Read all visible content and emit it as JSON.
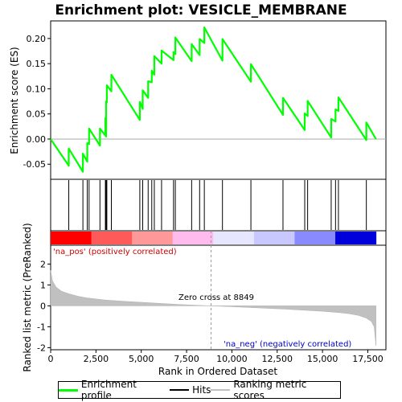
{
  "chart_data": {
    "type": "line",
    "title": "Enrichment plot: VESICLE_MEMBRANE",
    "xlabel": "Rank in Ordered Dataset",
    "ylabel_top": "Enrichment score (ES)",
    "ylabel_bottom": "Ranked list metric (PreRanked)",
    "xlim": [
      0,
      18500
    ],
    "top_ylim": [
      -0.08,
      0.235
    ],
    "bottom_ylim": [
      -2.1,
      2.9
    ],
    "x_ticks": [
      0,
      2500,
      5000,
      7500,
      10000,
      12500,
      15000,
      17500
    ],
    "x_tick_labels": [
      "0",
      "2,500",
      "5,000",
      "7,500",
      "10,000",
      "12,500",
      "15,000",
      "17,500"
    ],
    "top_y_ticks": [
      -0.05,
      0.0,
      0.05,
      0.1,
      0.15,
      0.2
    ],
    "top_y_tick_labels": [
      "-0.05",
      "0.00",
      "0.05",
      "0.10",
      "0.15",
      "0.20"
    ],
    "bottom_y_ticks": [
      -2,
      -1,
      0,
      1,
      2
    ],
    "bottom_y_tick_labels": [
      "-2",
      "-1",
      "0",
      "1",
      "2"
    ],
    "series": [
      {
        "name": "Enrichment profile",
        "color": "#00ff00",
        "hits": [
          1000,
          1780,
          2020,
          2120,
          2720,
          3020,
          3060,
          3100,
          3350,
          4920,
          5080,
          5380,
          5580,
          5720,
          6120,
          6780,
          6880,
          7780,
          8220,
          8480,
          9480,
          11050,
          12820,
          14020,
          14180,
          15480,
          15720,
          15880,
          17420
        ],
        "es_peaks": [
          0.0,
          -0.019,
          -0.029,
          -0.008,
          0.021,
          0.021,
          0.042,
          0.075,
          0.107,
          0.128,
          0.074,
          0.097,
          0.115,
          0.136,
          0.165,
          0.176,
          0.173,
          0.202,
          0.189,
          0.199,
          0.222,
          0.199,
          0.149,
          0.082,
          0.051,
          0.076,
          0.04,
          0.059,
          0.083,
          0.033,
          0.0
        ],
        "es_x": [
          0,
          1000,
          1780,
          2020,
          2120,
          2720,
          3020,
          3060,
          3100,
          3350,
          4920,
          5080,
          5380,
          5580,
          5720,
          6120,
          6780,
          6880,
          7780,
          8220,
          8480,
          9480,
          11050,
          12820,
          14020,
          14180,
          15480,
          15720,
          15880,
          17420,
          17950
        ],
        "es_valleys": [
          null,
          -0.053,
          -0.065,
          -0.045,
          -0.01,
          -0.013,
          0.007,
          0.005,
          0.073,
          0.095,
          0.038,
          0.06,
          0.082,
          0.113,
          0.128,
          0.15,
          0.157,
          0.169,
          0.155,
          0.167,
          0.191,
          0.156,
          0.114,
          0.048,
          0.018,
          0.046,
          0.003,
          0.035,
          0.056,
          -0.002,
          0.0
        ]
      },
      {
        "name": "Hits",
        "color": "#000000"
      },
      {
        "name": "Ranking metric scores",
        "color": "#c0c0c0",
        "profile_x": [
          0,
          100,
          300,
          600,
          1000,
          1500,
          2000,
          3000,
          4000,
          5000,
          6000,
          7000,
          8000,
          8849,
          10000,
          11000,
          12000,
          13000,
          14000,
          15000,
          16000,
          16500,
          17000,
          17400,
          17700,
          17850,
          17950
        ],
        "profile_y": [
          1.7,
          1.2,
          0.9,
          0.7,
          0.58,
          0.46,
          0.38,
          0.28,
          0.22,
          0.17,
          0.12,
          0.07,
          0.03,
          0.0,
          -0.04,
          -0.08,
          -0.12,
          -0.16,
          -0.21,
          -0.26,
          -0.33,
          -0.38,
          -0.46,
          -0.58,
          -0.75,
          -1.0,
          -1.9
        ]
      }
    ],
    "annotations": {
      "pos_label": "'na_pos' (positively correlated)",
      "neg_label": "'na_neg' (negatively correlated)",
      "zero_cross": "Zero cross at 8849",
      "zero_cross_x": 8849
    },
    "heat_bar_colors": [
      "#ff0000",
      "#ff5a5a",
      "#ff9999",
      "#ffbbee",
      "#e6e6ff",
      "#c8c8ff",
      "#8a8aff",
      "#0000dd"
    ],
    "legend_placement": "bottom"
  }
}
